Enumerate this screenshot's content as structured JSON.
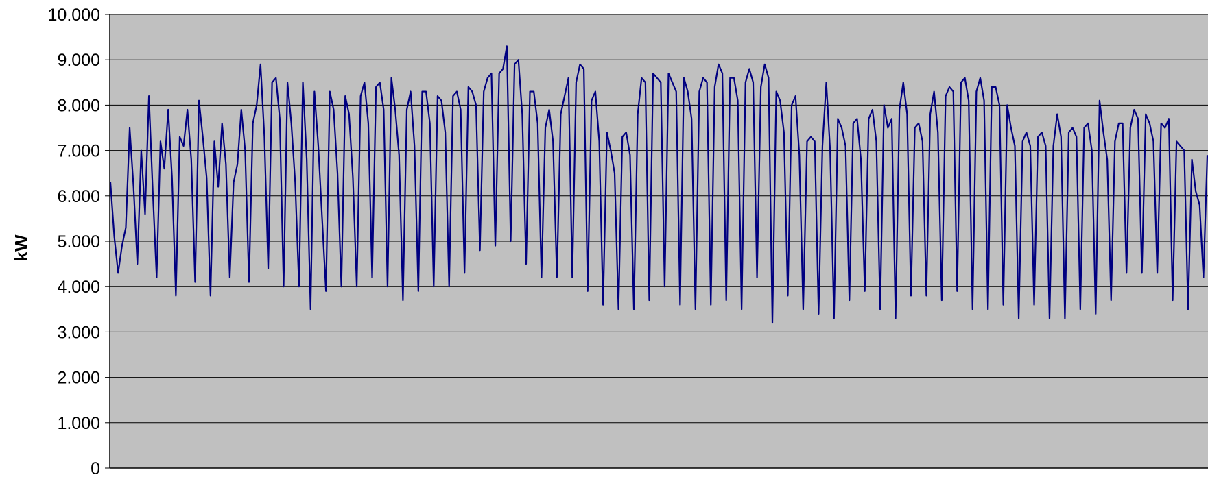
{
  "chart_data": {
    "type": "line",
    "title": "",
    "xlabel": "",
    "ylabel": "kW",
    "ylim": [
      0,
      10000
    ],
    "yticks": [
      0,
      1000,
      2000,
      3000,
      4000,
      5000,
      6000,
      7000,
      8000,
      9000,
      10000
    ],
    "ytick_labels": [
      "0",
      "1.000",
      "2.000",
      "3.000",
      "4.000",
      "5.000",
      "6.000",
      "7.000",
      "8.000",
      "9.000",
      "10.000"
    ],
    "grid": true,
    "legend": "none",
    "colors": {
      "background": "#C0C0C0",
      "line": "#000080",
      "grid": "#000000"
    },
    "series": [
      {
        "values": [
          6300,
          5100,
          4300,
          4900,
          5300,
          7500,
          6200,
          4500,
          7000,
          5600,
          8200,
          6100,
          4200,
          7200,
          6600,
          7900,
          6400,
          3800,
          7300,
          7100,
          7900,
          6800,
          4100,
          8100,
          7300,
          6400,
          3800,
          7200,
          6200,
          7600,
          6700,
          4200,
          6300,
          6700,
          7900,
          7000,
          4100,
          7600,
          8000,
          8900,
          7300,
          4400,
          8500,
          8600,
          7700,
          4000,
          8500,
          7600,
          6300,
          4000,
          8500,
          6800,
          3500,
          8300,
          7100,
          5500,
          3900,
          8300,
          7900,
          6500,
          4000,
          8200,
          7800,
          6400,
          4000,
          8200,
          8500,
          7600,
          4200,
          8400,
          8500,
          7900,
          4000,
          8600,
          7900,
          6900,
          3700,
          7900,
          8300,
          7100,
          3900,
          8300,
          8300,
          7600,
          4000,
          8200,
          8100,
          7400,
          4000,
          8200,
          8300,
          7900,
          4300,
          8400,
          8300,
          8000,
          4800,
          8300,
          8600,
          8700,
          4900,
          8700,
          8800,
          9300,
          5000,
          8900,
          9000,
          7800,
          4500,
          8300,
          8300,
          7600,
          4200,
          7500,
          7900,
          7200,
          4200,
          7800,
          8200,
          8600,
          4200,
          8500,
          8900,
          8800,
          3900,
          8100,
          8300,
          7200,
          3600,
          7400,
          7000,
          6500,
          3500,
          7300,
          7400,
          6900,
          3500,
          7800,
          8600,
          8500,
          3700,
          8700,
          8600,
          8500,
          4000,
          8700,
          8500,
          8300,
          3600,
          8600,
          8300,
          7700,
          3500,
          8300,
          8600,
          8500,
          3600,
          8400,
          8900,
          8700,
          3700,
          8600,
          8600,
          8100,
          3500,
          8500,
          8800,
          8500,
          4200,
          8400,
          8900,
          8600,
          3200,
          8300,
          8100,
          7400,
          3800,
          8000,
          8200,
          6900,
          3500,
          7200,
          7300,
          7200,
          3400,
          7100,
          8500,
          7000,
          3300,
          7700,
          7500,
          7100,
          3700,
          7600,
          7700,
          6800,
          3900,
          7700,
          7900,
          7200,
          3500,
          8000,
          7500,
          7700,
          3300,
          7900,
          8500,
          7800,
          3800,
          7500,
          7600,
          7200,
          3800,
          7800,
          8300,
          7400,
          3700,
          8200,
          8400,
          8300,
          3900,
          8500,
          8600,
          8100,
          3500,
          8300,
          8600,
          8100,
          3500,
          8400,
          8400,
          8000,
          3600,
          8000,
          7500,
          7100,
          3300,
          7200,
          7400,
          7100,
          3600,
          7300,
          7400,
          7100,
          3300,
          7100,
          7800,
          7300,
          3300,
          7400,
          7500,
          7300,
          3500,
          7500,
          7600,
          7000,
          3400,
          8100,
          7400,
          6800,
          3700,
          7200,
          7600,
          7600,
          4300,
          7500,
          7900,
          7700,
          4300,
          7800,
          7600,
          7200,
          4300,
          7600,
          7500,
          7700,
          3700,
          7200,
          7100,
          7000,
          3500,
          6800,
          6100,
          5800,
          4200,
          6900
        ]
      }
    ]
  }
}
